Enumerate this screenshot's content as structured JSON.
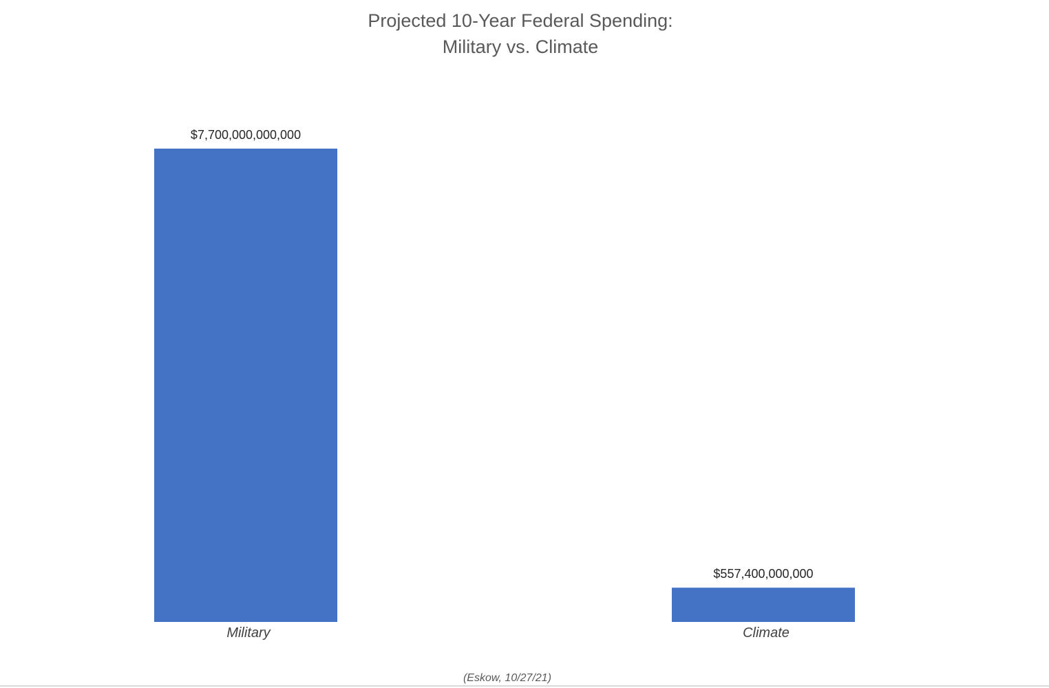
{
  "chart_data": {
    "type": "bar",
    "title": "Projected 10-Year Federal Spending: Military vs. Climate",
    "title_lines": [
      "Projected 10-Year Federal Spending:",
      "Military vs. Climate"
    ],
    "categories": [
      "Military",
      "Climate"
    ],
    "values": [
      7700000000000,
      557400000000
    ],
    "data_labels": [
      "$7,700,000,000,000",
      "$557,400,000,000"
    ],
    "xlabel": "",
    "ylabel": "",
    "ylim": [
      0,
      7700000000000
    ],
    "grid": false,
    "legend": "none",
    "bar_color": "#4472C4",
    "source_note": "(Eskow, 10/27/21)"
  }
}
